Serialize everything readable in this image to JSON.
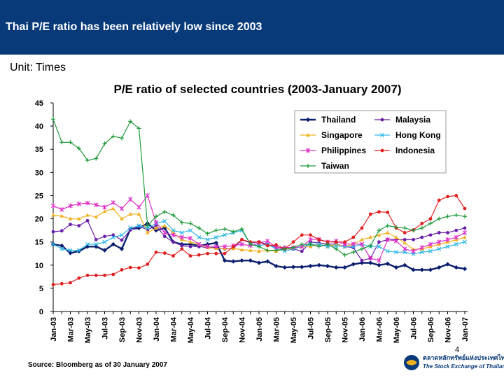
{
  "header": {
    "title": "Thai P/E ratio has been relatively low since 2003",
    "bg_color": "#083a7a"
  },
  "unit": "Unit: Times",
  "source": "Source: Bloomberg as of 30 January 2007",
  "page_number": "4",
  "logo": {
    "thai_text": "ตลาดหลักทรัพย์แห่งประเทศไทย",
    "english_text": "The Stock Exchange of Thailand"
  },
  "chart_data": {
    "type": "line",
    "title": "P/E ratio of selected countries (2003-January 2007)",
    "xlabel": "",
    "ylabel": "",
    "ylim": [
      0,
      45
    ],
    "yticks": [
      0,
      5,
      10,
      15,
      20,
      25,
      30,
      35,
      40,
      45
    ],
    "grid": false,
    "legend_position": "top-right",
    "categories": [
      "Jan-03",
      "Feb-03",
      "Mar-03",
      "Apr-03",
      "May-03",
      "Jun-03",
      "Jul-03",
      "Aug-03",
      "Sep-03",
      "Oct-03",
      "Nov-03",
      "Dec-03",
      "Jan-04",
      "Feb-04",
      "Mar-04",
      "Apr-04",
      "May-04",
      "Jun-04",
      "Jul-04",
      "Aug-04",
      "Sep-04",
      "Oct-04",
      "Nov-04",
      "Dec-04",
      "Jan-05",
      "Feb-05",
      "Mar-05",
      "Apr-05",
      "May-05",
      "Jun-05",
      "Jul-05",
      "Aug-05",
      "Sep-05",
      "Oct-05",
      "Nov-05",
      "Dec-05",
      "Jan-06",
      "Feb-06",
      "Mar-06",
      "Apr-06",
      "May-06",
      "Jun-06",
      "Jul-06",
      "Aug-06",
      "Sep-06",
      "Oct-06",
      "Nov-06",
      "Dec-06",
      "Jan-07"
    ],
    "tick_labels": [
      "Jan-03",
      "Mar-03",
      "May-03",
      "Jul-03",
      "Sep-03",
      "Nov-03",
      "Jan-04",
      "Mar-04",
      "May-04",
      "Jul-04",
      "Sep-04",
      "Nov-04",
      "Jan-05",
      "Mar-05",
      "May-05",
      "Jul-05",
      "Sep-05",
      "Nov-05",
      "Jan-06",
      "Mar-06",
      "May-06",
      "Jul-06",
      "Sep-06",
      "Nov-06",
      "Jan-07"
    ],
    "series": [
      {
        "name": "Thailand",
        "color": "#0b1f6e",
        "marker": "diamond",
        "values": [
          14.5,
          14.2,
          12.6,
          13.0,
          14.0,
          14.0,
          13.2,
          14.5,
          13.5,
          17.8,
          18.0,
          19.0,
          17.5,
          18.0,
          15.0,
          14.5,
          14.5,
          14.2,
          14.5,
          14.8,
          11.0,
          10.8,
          11.0,
          11.0,
          10.5,
          10.8,
          9.8,
          9.5,
          9.6,
          9.6,
          9.8,
          10.0,
          9.8,
          9.5,
          9.5,
          10.2,
          10.5,
          10.5,
          10.0,
          10.3,
          9.5,
          10.0,
          9.0,
          9.0,
          9.0,
          9.5,
          10.2,
          9.5,
          9.2
        ]
      },
      {
        "name": "Malaysia",
        "color": "#6a1fa8",
        "marker": "circle",
        "values": [
          17.2,
          17.4,
          18.8,
          18.5,
          19.6,
          15.5,
          16.2,
          16.5,
          15.4,
          17.6,
          18.4,
          17.6,
          18.5,
          16.2,
          15.0,
          14.2,
          14.0,
          14.0,
          13.8,
          13.8,
          13.5,
          13.6,
          15.5,
          14.8,
          15.0,
          14.5,
          13.8,
          13.5,
          13.5,
          13.0,
          15.0,
          14.8,
          14.5,
          14.6,
          14.0,
          13.8,
          11.0,
          11.5,
          15.0,
          15.5,
          15.5,
          15.5,
          15.5,
          16.0,
          16.5,
          17.0,
          17.0,
          17.5,
          18.0
        ]
      },
      {
        "name": "Singapore",
        "color": "#f0b020",
        "marker": "triangle",
        "values": [
          20.8,
          20.6,
          20.0,
          20.0,
          20.8,
          20.4,
          21.6,
          22.2,
          20.0,
          21.0,
          21.0,
          17.0,
          18.0,
          18.5,
          17.0,
          15.5,
          15.0,
          14.5,
          13.8,
          13.6,
          13.6,
          13.6,
          13.3,
          13.2,
          13.0,
          13.2,
          13.0,
          13.5,
          13.6,
          14.0,
          14.0,
          14.5,
          14.0,
          14.5,
          14.0,
          14.5,
          15.5,
          16.0,
          16.5,
          17.0,
          16.0,
          14.8,
          13.4,
          13.5,
          14.0,
          14.5,
          15.0,
          15.5,
          16.0
        ]
      },
      {
        "name": "Hong Kong",
        "color": "#30b8e8",
        "marker": "x",
        "values": [
          14.5,
          13.5,
          13.2,
          13.2,
          14.5,
          14.5,
          15.0,
          16.0,
          16.5,
          18.0,
          18.5,
          18.0,
          19.0,
          19.5,
          17.5,
          17.0,
          17.5,
          16.0,
          15.5,
          16.0,
          16.5,
          17.0,
          17.5,
          14.5,
          14.2,
          14.5,
          13.5,
          13.0,
          13.5,
          14.0,
          14.5,
          14.5,
          14.0,
          14.2,
          14.0,
          14.0,
          14.5,
          14.0,
          14.0,
          13.0,
          12.8,
          12.8,
          12.4,
          12.8,
          13.0,
          13.5,
          14.0,
          14.5,
          15.0
        ]
      },
      {
        "name": "Philippines",
        "color": "#e030c8",
        "marker": "star",
        "values": [
          22.8,
          22.0,
          22.8,
          23.2,
          23.4,
          23.0,
          22.5,
          23.5,
          22.2,
          24.2,
          22.5,
          25.0,
          19.2,
          17.0,
          16.5,
          16.0,
          15.8,
          14.5,
          14.0,
          14.0,
          14.0,
          14.2,
          14.5,
          14.2,
          14.8,
          15.2,
          13.8,
          13.8,
          13.8,
          14.0,
          15.5,
          15.6,
          15.0,
          15.2,
          14.5,
          14.6,
          14.5,
          11.5,
          11.0,
          15.5,
          15.2,
          13.5,
          13.0,
          13.8,
          14.5,
          15.0,
          15.5,
          16.0,
          17.0
        ]
      },
      {
        "name": "Indonesia",
        "color": "#e02020",
        "marker": "circle",
        "values": [
          5.8,
          6.0,
          6.2,
          7.2,
          7.8,
          7.8,
          7.8,
          8.0,
          9.0,
          9.5,
          9.4,
          10.2,
          12.8,
          12.6,
          12.0,
          13.5,
          12.0,
          12.2,
          12.5,
          12.5,
          12.5,
          14.0,
          15.5,
          15.0,
          15.0,
          14.2,
          14.4,
          13.5,
          15.0,
          16.5,
          16.5,
          15.5,
          15.0,
          15.0,
          15.0,
          16.0,
          18.0,
          21.0,
          21.5,
          21.4,
          18.0,
          17.0,
          17.6,
          19.0,
          20.0,
          24.0,
          24.8,
          25.0,
          22.2
        ]
      },
      {
        "name": "Taiwan",
        "color": "#1f9a3a",
        "marker": "plus",
        "values": [
          41.5,
          36.5,
          36.5,
          35.2,
          32.6,
          33.0,
          36.2,
          37.8,
          37.4,
          41.0,
          39.5,
          18.5,
          20.5,
          21.5,
          20.8,
          19.2,
          19.0,
          18.0,
          16.8,
          17.5,
          17.8,
          17.2,
          17.8,
          14.5,
          14.0,
          13.2,
          13.2,
          13.5,
          13.8,
          14.5,
          14.5,
          14.0,
          14.5,
          13.5,
          12.2,
          12.8,
          13.5,
          14.2,
          17.5,
          18.5,
          18.2,
          18.0,
          17.5,
          18.0,
          19.0,
          20.0,
          20.5,
          20.8,
          20.5
        ]
      }
    ]
  }
}
